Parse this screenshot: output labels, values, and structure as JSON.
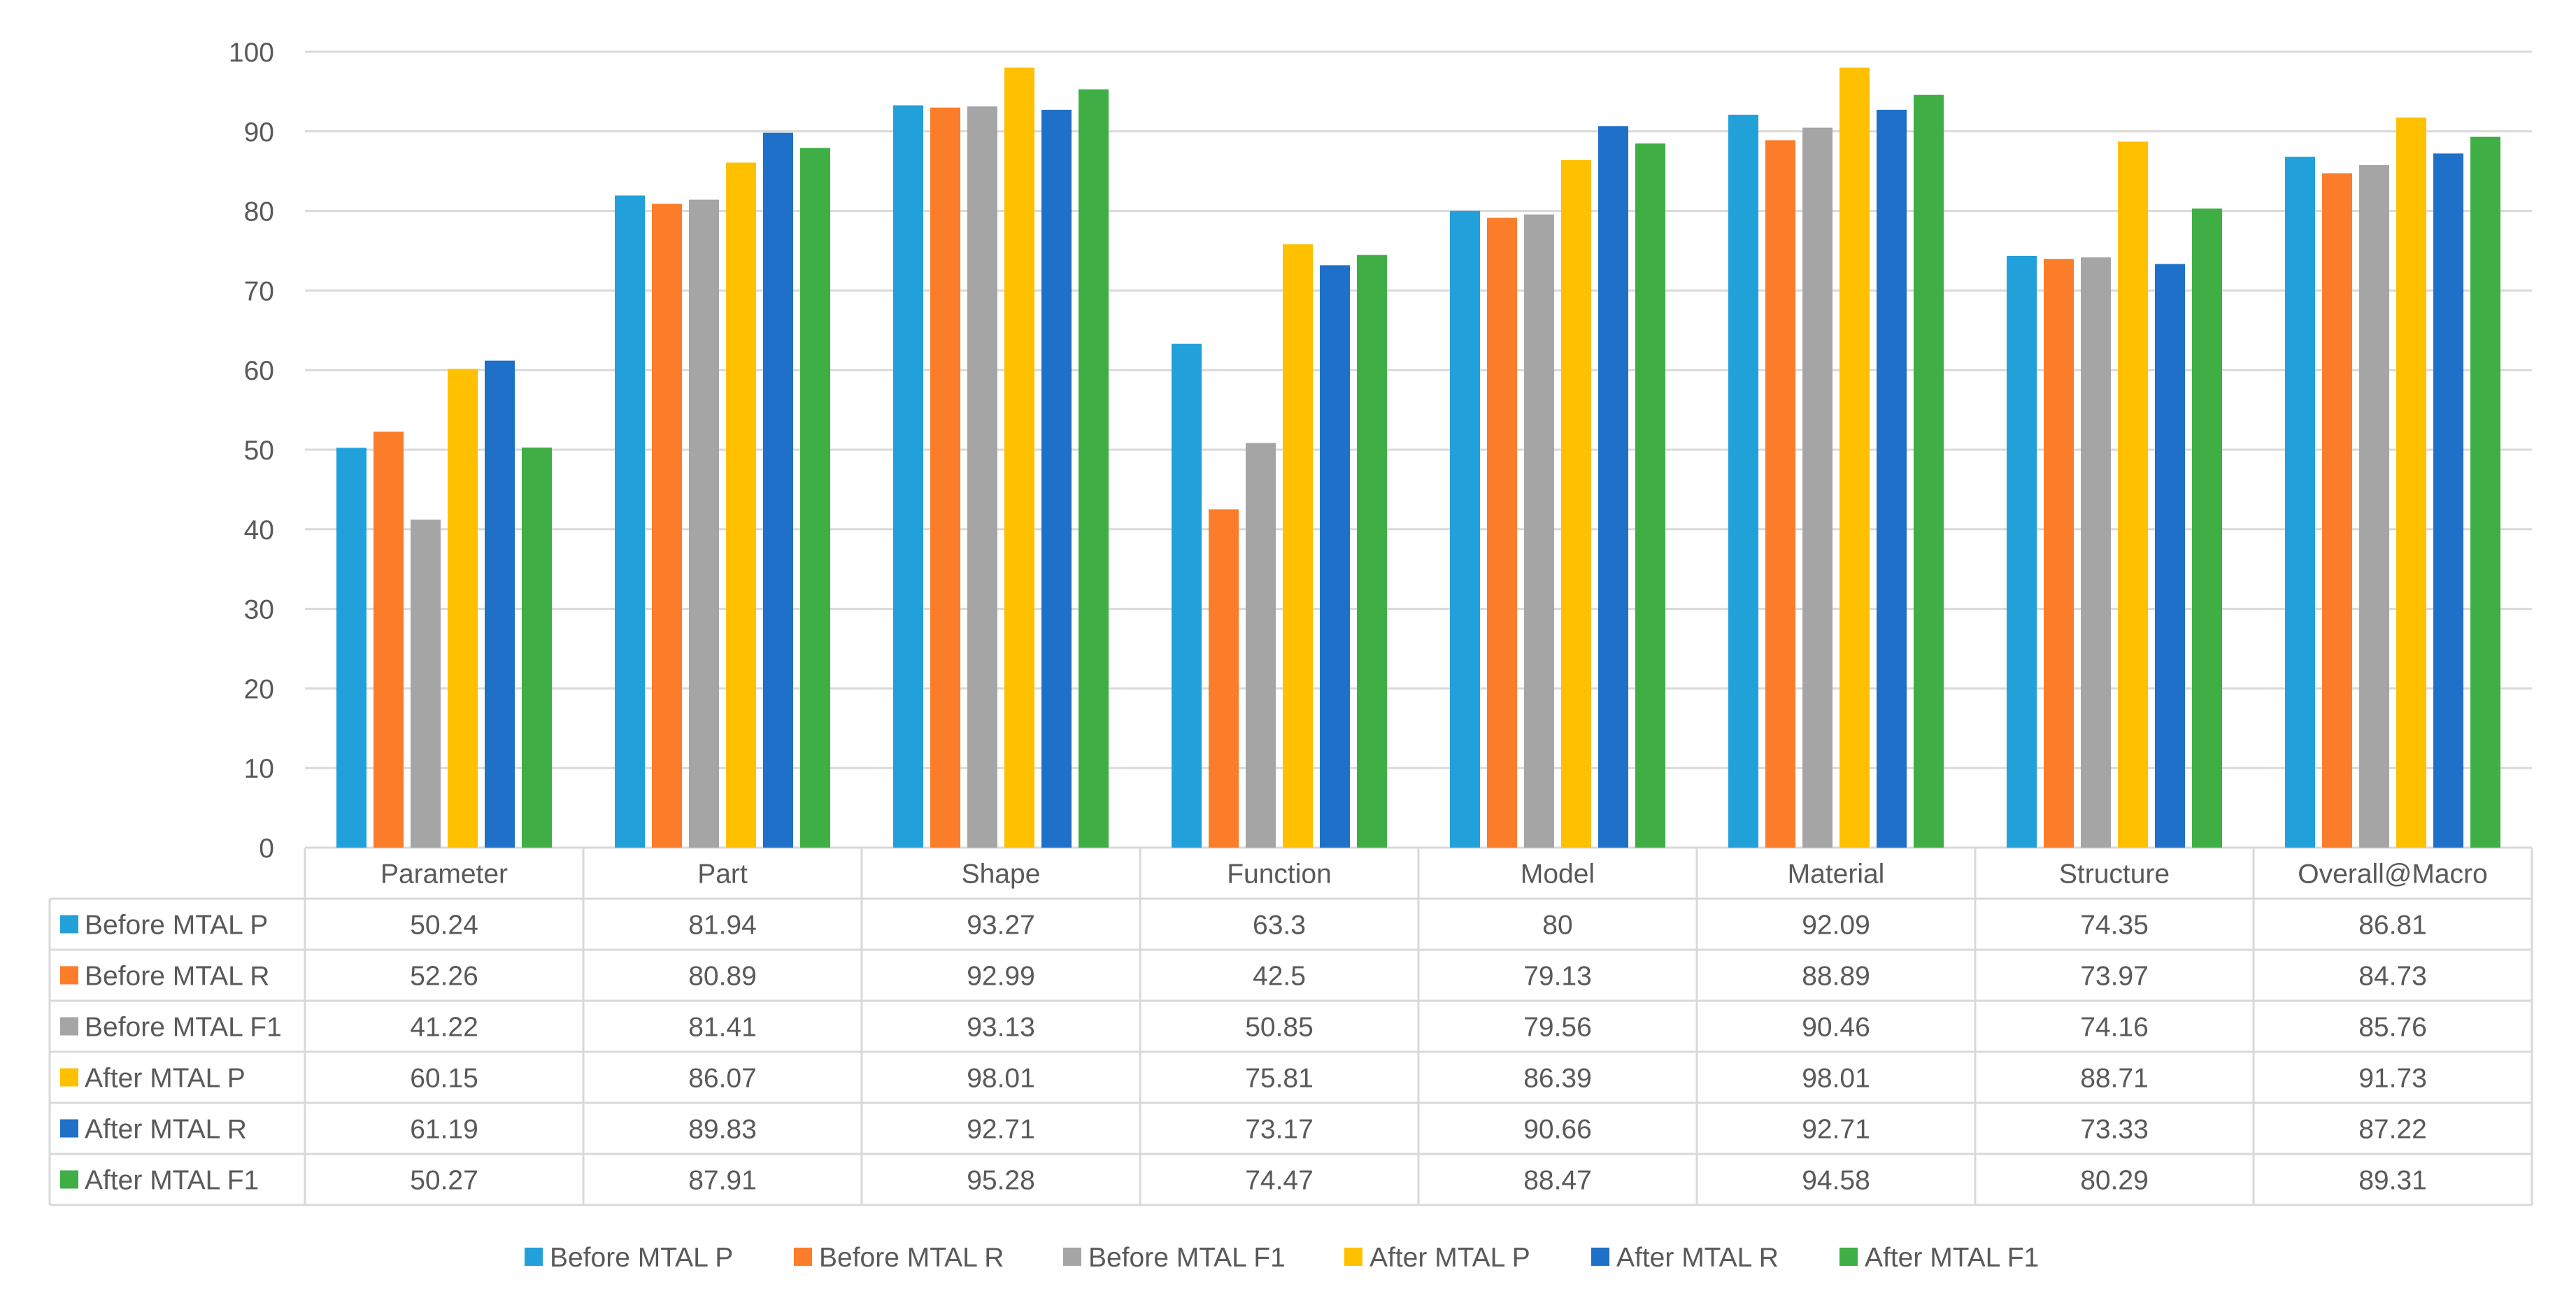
{
  "chart_data": {
    "type": "bar",
    "title": "",
    "xlabel": "",
    "ylabel": "",
    "ylim": [
      0,
      100
    ],
    "yticks": [
      0,
      10,
      20,
      30,
      40,
      50,
      60,
      70,
      80,
      90,
      100
    ],
    "grid": true,
    "legend_position": "bottom",
    "data_table": true,
    "categories": [
      "Parameter",
      "Part",
      "Shape",
      "Function",
      "Model",
      "Material",
      "Structure",
      "Overall@Macro"
    ],
    "series": [
      {
        "name": "Before MTAL P",
        "color": "#22A0DA",
        "values": [
          50.24,
          81.94,
          93.27,
          63.3,
          80,
          92.09,
          74.35,
          86.81
        ],
        "labels": [
          "50.24",
          "81.94",
          "93.27",
          "63.3",
          "80",
          "92.09",
          "74.35",
          "86.81"
        ]
      },
      {
        "name": "Before MTAL R",
        "color": "#FB7D29",
        "values": [
          52.26,
          80.89,
          92.99,
          42.5,
          79.13,
          88.89,
          73.97,
          84.73
        ],
        "labels": [
          "52.26",
          "80.89",
          "92.99",
          "42.5",
          "79.13",
          "88.89",
          "73.97",
          "84.73"
        ]
      },
      {
        "name": "Before MTAL F1",
        "color": "#A5A5A5",
        "values": [
          41.22,
          81.41,
          93.13,
          50.85,
          79.56,
          90.46,
          74.16,
          85.76
        ],
        "labels": [
          "41.22",
          "81.41",
          "93.13",
          "50.85",
          "79.56",
          "90.46",
          "74.16",
          "85.76"
        ]
      },
      {
        "name": "After MTAL P",
        "color": "#FFC000",
        "values": [
          60.15,
          86.07,
          98.01,
          75.81,
          86.39,
          98.01,
          88.71,
          91.73
        ],
        "labels": [
          "60.15",
          "86.07",
          "98.01",
          "75.81",
          "86.39",
          "98.01",
          "88.71",
          "91.73"
        ]
      },
      {
        "name": "After MTAL R",
        "color": "#1F70C8",
        "values": [
          61.19,
          89.83,
          92.71,
          73.17,
          90.66,
          92.71,
          73.33,
          87.22
        ],
        "labels": [
          "61.19",
          "89.83",
          "92.71",
          "73.17",
          "90.66",
          "92.71",
          "73.33",
          "87.22"
        ]
      },
      {
        "name": "After MTAL F1",
        "color": "#3FAE44",
        "values": [
          50.27,
          87.91,
          95.28,
          74.47,
          88.47,
          94.58,
          80.29,
          89.31
        ],
        "labels": [
          "50.27",
          "87.91",
          "95.28",
          "74.47",
          "88.47",
          "94.58",
          "80.29",
          "89.31"
        ]
      }
    ]
  }
}
